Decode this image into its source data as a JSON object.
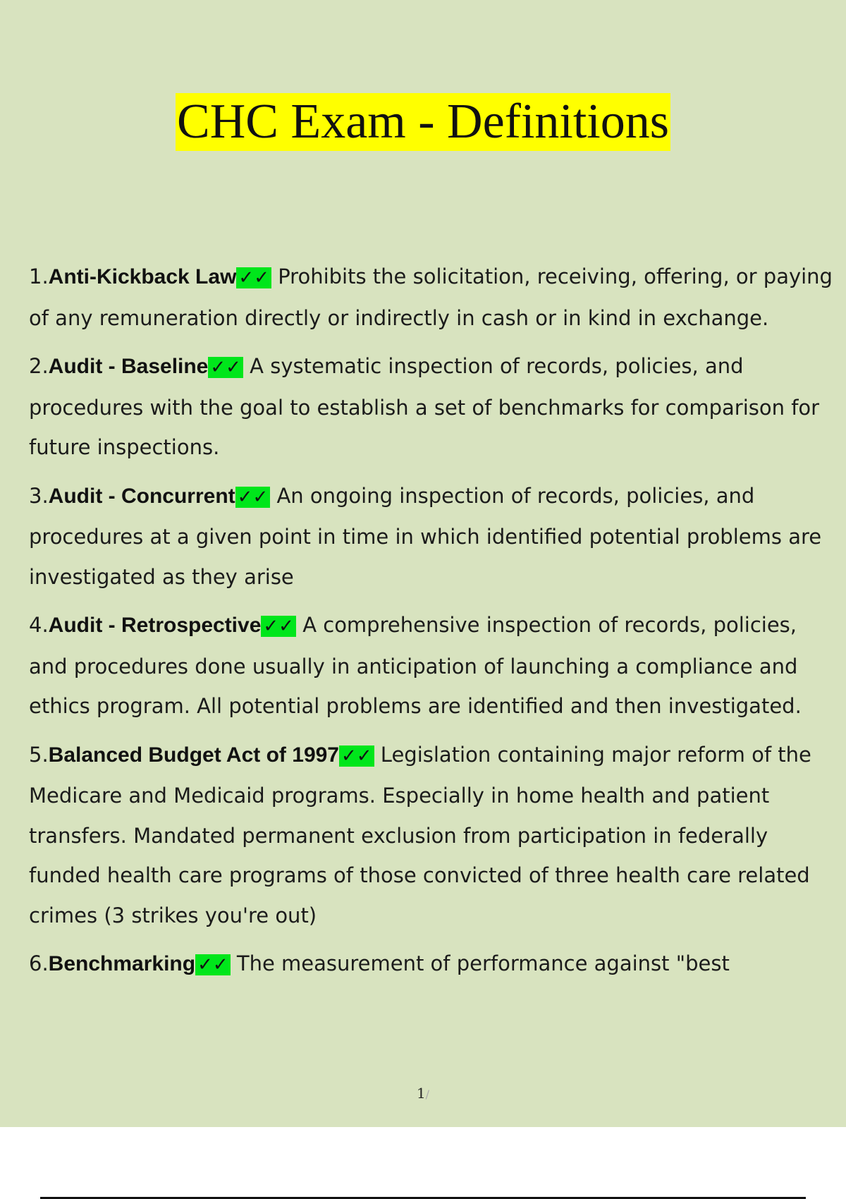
{
  "document": {
    "title": "CHC Exam - Definitions",
    "check_glyph": "✓✓",
    "items": [
      {
        "number": "1.",
        "term": "Anti-Kickback Law",
        "definition": "Prohibits the solicitation, receiving, offering, or paying of any remuneration directly or indirectly in cash or in kind in exchange."
      },
      {
        "number": "2.",
        "term": "Audit - Baseline",
        "definition": "A systematic inspection of records, policies, and procedures with the goal to establish a set of benchmarks for comparison for future inspections."
      },
      {
        "number": "3.",
        "term": "Audit - Concurrent",
        "definition": "An ongoing inspection of records, policies, and procedures at a given point in time in which identified potential problems are investigated as they arise"
      },
      {
        "number": "4.",
        "term": "Audit - Retrospective",
        "definition": "A comprehensive inspection of records, policies, and procedures done usually in anticipation of launching a compliance and ethics program. All potential problems are identified and then investigated."
      },
      {
        "number": "5.",
        "term": "Balanced Budget Act of 1997",
        "definition": "Legislation containing major reform of the Medicare and Medicaid programs. Especially in home health and patient transfers. Mandated permanent exclusion from participation in federally funded health care programs of those convicted of three health care related crimes (3 strikes you're out)"
      },
      {
        "number": "6.",
        "term": "Benchmarking",
        "definition": "The measurement of performance against \"best"
      }
    ],
    "page_number": "1",
    "page_separator": "/"
  },
  "colors": {
    "page_bg": "#d8e3bf",
    "title_highlight": "#ffff00",
    "check_highlight": "#00e61b"
  }
}
